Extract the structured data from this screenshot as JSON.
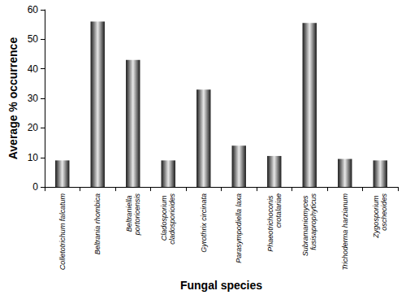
{
  "chart_data": {
    "type": "bar",
    "x_label": "Fungal species",
    "y_label": "Average % occurrence",
    "categories": [
      "Colletotrichum falcatum",
      "Beltrania rhombica",
      "Beltraniella portoricensis",
      "Cladosporium cladosporioides",
      "Gyrothrix circinata",
      "Parasympodiella laxa",
      "Phaeotrichoconis crotalariae",
      "Subramaniomyces fusisaprophyticus",
      "Trichoderma harzianum",
      "Zygosporium oscheoides"
    ],
    "values": [
      9,
      56,
      43,
      9,
      33,
      14,
      10.5,
      55.5,
      9.5,
      9
    ],
    "color": "#1a1a1a",
    "ylim": [
      0,
      60
    ],
    "yticks": [
      0,
      10,
      20,
      30,
      40,
      50,
      60
    ],
    "grid": false
  }
}
